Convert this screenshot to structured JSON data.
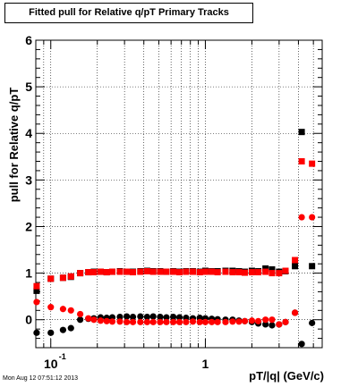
{
  "chart_data": {
    "type": "scatter",
    "title": "Fitted pull for Relative q/pT  Primary Tracks",
    "xlabel": "pT/|q| (GeV/c)",
    "ylabel": "pull for Relative q/pT",
    "xscale": "log",
    "xlim": [
      0.08,
      5.7
    ],
    "ylim": [
      -0.6,
      6.0
    ],
    "x_tick_labels": [
      {
        "value": 0.1,
        "base": "10",
        "exp": "-1"
      },
      {
        "value": 1,
        "base": "1",
        "exp": ""
      }
    ],
    "y_ticks": [
      0,
      1,
      2,
      3,
      4,
      5,
      6
    ],
    "grid": true,
    "legend": "none",
    "series": [
      {
        "marker": "square",
        "color": "#000000",
        "x": [
          0.081,
          0.1,
          0.12,
          0.135,
          0.155,
          0.175,
          0.19,
          0.21,
          0.23,
          0.25,
          0.28,
          0.31,
          0.34,
          0.38,
          0.42,
          0.46,
          0.51,
          0.56,
          0.62,
          0.68,
          0.75,
          0.83,
          0.92,
          1.0,
          1.1,
          1.2,
          1.35,
          1.5,
          1.65,
          1.8,
          2.0,
          2.2,
          2.45,
          2.7,
          3.0,
          3.3,
          3.8,
          4.2,
          4.9
        ],
        "y": [
          0.62,
          0.88,
          0.9,
          0.92,
          1.0,
          1.02,
          1.03,
          1.03,
          1.02,
          1.03,
          1.04,
          1.03,
          1.03,
          1.04,
          1.05,
          1.04,
          1.04,
          1.03,
          1.04,
          1.03,
          1.04,
          1.04,
          1.03,
          1.05,
          1.04,
          1.04,
          1.05,
          1.05,
          1.04,
          1.03,
          1.05,
          1.04,
          1.1,
          1.08,
          1.03,
          1.04,
          1.15,
          4.03,
          1.15
        ]
      },
      {
        "marker": "circle",
        "color": "#000000",
        "x": [
          0.081,
          0.1,
          0.12,
          0.135,
          0.155,
          0.175,
          0.19,
          0.21,
          0.23,
          0.25,
          0.28,
          0.31,
          0.34,
          0.38,
          0.42,
          0.46,
          0.51,
          0.56,
          0.62,
          0.68,
          0.75,
          0.83,
          0.92,
          1.0,
          1.1,
          1.2,
          1.35,
          1.5,
          1.65,
          1.8,
          2.0,
          2.2,
          2.45,
          2.7,
          3.0,
          3.3,
          3.8,
          4.2,
          4.9
        ],
        "y": [
          -0.28,
          -0.28,
          -0.22,
          -0.18,
          0.0,
          0.02,
          0.03,
          0.05,
          0.04,
          0.05,
          0.06,
          0.07,
          0.06,
          0.07,
          0.06,
          0.07,
          0.06,
          0.05,
          0.06,
          0.05,
          0.04,
          0.03,
          0.04,
          0.03,
          0.02,
          0.01,
          0.0,
          0.0,
          -0.02,
          -0.03,
          -0.05,
          -0.08,
          -0.1,
          -0.12,
          -0.1,
          -0.05,
          0.15,
          -0.52,
          -0.07
        ]
      },
      {
        "marker": "square",
        "color": "#ff0000",
        "x": [
          0.081,
          0.1,
          0.12,
          0.135,
          0.155,
          0.175,
          0.19,
          0.21,
          0.23,
          0.25,
          0.28,
          0.31,
          0.34,
          0.38,
          0.42,
          0.46,
          0.51,
          0.56,
          0.62,
          0.68,
          0.75,
          0.83,
          0.92,
          1.0,
          1.1,
          1.2,
          1.35,
          1.5,
          1.65,
          1.8,
          2.0,
          2.2,
          2.45,
          2.7,
          3.0,
          3.3,
          3.8,
          4.2,
          4.9
        ],
        "y": [
          0.72,
          0.88,
          0.9,
          0.93,
          1.0,
          1.02,
          1.02,
          1.03,
          1.02,
          1.03,
          1.03,
          1.03,
          1.02,
          1.03,
          1.04,
          1.03,
          1.03,
          1.03,
          1.03,
          1.02,
          1.03,
          1.03,
          1.02,
          1.03,
          1.03,
          1.02,
          1.03,
          1.02,
          1.02,
          1.01,
          1.02,
          1.02,
          1.03,
          1.0,
          1.0,
          1.05,
          1.28,
          3.4,
          3.35
        ]
      },
      {
        "marker": "circle",
        "color": "#ff0000",
        "x": [
          0.081,
          0.1,
          0.12,
          0.135,
          0.155,
          0.175,
          0.19,
          0.21,
          0.23,
          0.25,
          0.28,
          0.31,
          0.34,
          0.38,
          0.42,
          0.46,
          0.51,
          0.56,
          0.62,
          0.68,
          0.75,
          0.83,
          0.92,
          1.0,
          1.1,
          1.2,
          1.35,
          1.5,
          1.65,
          1.8,
          2.0,
          2.2,
          2.45,
          2.7,
          3.0,
          3.3,
          3.8,
          4.2,
          4.9
        ],
        "y": [
          0.38,
          0.27,
          0.23,
          0.2,
          0.12,
          0.03,
          0.0,
          -0.02,
          -0.03,
          -0.04,
          -0.04,
          -0.05,
          -0.05,
          -0.05,
          -0.05,
          -0.05,
          -0.05,
          -0.05,
          -0.05,
          -0.05,
          -0.05,
          -0.04,
          -0.05,
          -0.05,
          -0.05,
          -0.05,
          -0.05,
          -0.04,
          -0.04,
          -0.03,
          -0.02,
          -0.03,
          0.0,
          0.0,
          -0.1,
          -0.05,
          0.15,
          2.2,
          2.2
        ]
      }
    ]
  },
  "timestamp": "Mon Aug 12 07:51:12 2013"
}
